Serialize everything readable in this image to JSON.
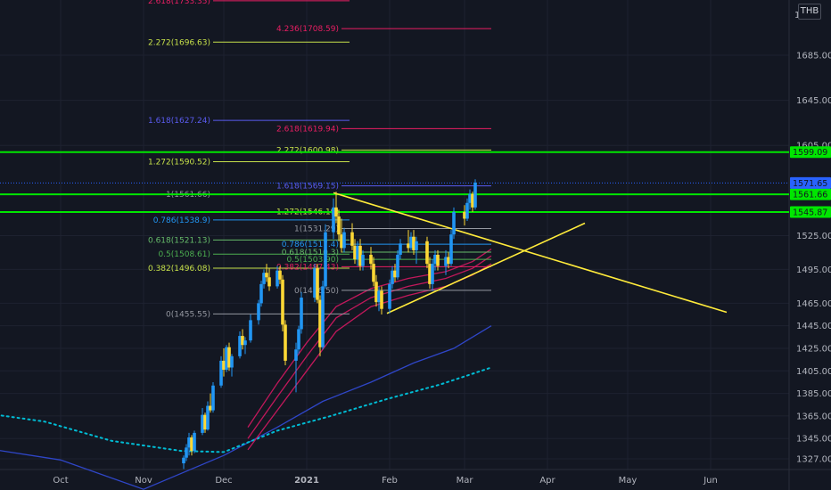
{
  "currency": "THB",
  "price_axis_marker": "1",
  "chart_data": {
    "type": "candlestick",
    "x_ticks": [
      "Oct",
      "Nov",
      "Dec",
      "2021",
      "Feb",
      "Mar",
      "Apr",
      "May",
      "Jun"
    ],
    "y_ticks": [
      "1685.00",
      "1645.00",
      "1605.00",
      "1525.00",
      "1495.00",
      "1465.00",
      "1445.00",
      "1425.00",
      "1405.00",
      "1385.00",
      "1365.00",
      "1345.00",
      "1327.00"
    ],
    "ylim": [
      1320,
      1745
    ],
    "horizontal_levels": [
      {
        "label": "1599.09",
        "value": 1599.09,
        "color": "#00e600"
      },
      {
        "label": "1561.66",
        "value": 1561.66,
        "color": "#00e600"
      },
      {
        "label": "1545.87",
        "value": 1545.87,
        "color": "#00e600"
      }
    ],
    "last_price": {
      "label": "1571.65",
      "value": 1571.65,
      "color": "#2962ff"
    },
    "fib_levels": [
      {
        "label": "2.618(1733.35)",
        "value": 1733.35,
        "color": "#e91e63",
        "x1": "Nov 27",
        "x2": "Jan 17"
      },
      {
        "label": "4.236(1708.59)",
        "value": 1708.59,
        "color": "#e91e63",
        "x1": "Jan 14",
        "x2": "Mar 11"
      },
      {
        "label": "2.272(1696.63)",
        "value": 1696.63,
        "color": "#c6e04a",
        "x1": "Nov 27",
        "x2": "Jan 17"
      },
      {
        "label": "1.618(1627.24)",
        "value": 1627.24,
        "color": "#5a5cf0",
        "x1": "Nov 27",
        "x2": "Jan 17"
      },
      {
        "label": "2.618(1619.94)",
        "value": 1619.94,
        "color": "#e91e63",
        "x1": "Jan 14",
        "x2": "Mar 11"
      },
      {
        "label": "2.272(1600.98)",
        "value": 1600.98,
        "color": "#c6e04a",
        "x1": "Jan 14",
        "x2": "Mar 11"
      },
      {
        "label": "1.272(1590.52)",
        "value": 1590.52,
        "color": "#c6e04a",
        "x1": "Nov 27",
        "x2": "Jan 17"
      },
      {
        "label": "1.618(1569.15)",
        "value": 1569.15,
        "color": "#5a5cf0",
        "x1": "Jan 14",
        "x2": "Mar 11"
      },
      {
        "label": "1(1561.66)",
        "value": 1561.66,
        "color": "#9598a1",
        "x1": "Nov 27",
        "x2": "Jan 17"
      },
      {
        "label": "1.272(1546.19)",
        "value": 1546.19,
        "color": "#c6e04a",
        "x1": "Jan 14",
        "x2": "Mar 11"
      },
      {
        "label": "0.786(1538.9)",
        "value": 1538.9,
        "color": "#2196f3",
        "x1": "Nov 27",
        "x2": "Jan 17"
      },
      {
        "label": "1(1531.29)",
        "value": 1531.29,
        "color": "#9598a1",
        "x1": "Jan 14",
        "x2": "Mar 11"
      },
      {
        "label": "0.618(1521.13)",
        "value": 1521.13,
        "color": "#66bb6a",
        "x1": "Nov 27",
        "x2": "Jan 17"
      },
      {
        "label": "0.786(1517.4)",
        "value": 1517.4,
        "color": "#2196f3",
        "x1": "Jan 14",
        "x2": "Mar 11"
      },
      {
        "label": "0.5(1508.61)",
        "value": 1508.61,
        "color": "#4caf50",
        "x1": "Nov 27",
        "x2": "Jan 17"
      },
      {
        "label": "0.618(1510.3)",
        "value": 1510.3,
        "color": "#66bb6a",
        "x1": "Jan 14",
        "x2": "Mar 11"
      },
      {
        "label": "0.5(1503.90)",
        "value": 1503.9,
        "color": "#4caf50",
        "x1": "Jan 14",
        "x2": "Mar 11"
      },
      {
        "label": "0.382(1496.08)",
        "value": 1496.08,
        "color": "#c6e04a",
        "x1": "Nov 27",
        "x2": "Jan 17"
      },
      {
        "label": "0.382(1497.43)",
        "value": 1497.43,
        "color": "#e91e63",
        "x1": "Jan 14",
        "x2": "Mar 11"
      },
      {
        "label": "0(1476.50)",
        "value": 1476.5,
        "color": "#9598a1",
        "x1": "Jan 14",
        "x2": "Mar 11"
      },
      {
        "label": "0(1455.55)",
        "value": 1455.55,
        "color": "#9598a1",
        "x1": "Nov 27",
        "x2": "Jan 17"
      }
    ],
    "trendlines": [
      {
        "name": "descending",
        "color": "#ffeb3b",
        "from": [
          "Jan 11",
          1563
        ],
        "to": [
          "Jun 7",
          1457
        ]
      },
      {
        "name": "ascending",
        "color": "#ffeb3b",
        "from": [
          "Jan 31",
          1456
        ],
        "to": [
          "Apr 15",
          1536
        ]
      }
    ],
    "moving_averages": [
      {
        "color": "#2f46c8",
        "style": "solid",
        "points": [
          [
            "Sep 1",
            1337
          ],
          [
            "Oct 1",
            1326
          ],
          [
            "Nov 1",
            1300
          ],
          [
            "Dec 1",
            1330
          ],
          [
            "Dec 21",
            1355
          ],
          [
            "Jan 7",
            1378
          ],
          [
            "Jan 25",
            1395
          ],
          [
            "Feb 10",
            1412
          ],
          [
            "Feb 25",
            1425
          ],
          [
            "Mar 11",
            1445
          ]
        ]
      },
      {
        "color": "#00bcd4",
        "style": "dotted",
        "points": [
          [
            "Sep 1",
            1368
          ],
          [
            "Sep 25",
            1360
          ],
          [
            "Oct 20",
            1343
          ],
          [
            "Nov 15",
            1334
          ],
          [
            "Dec 1",
            1333
          ],
          [
            "Dec 21",
            1352
          ],
          [
            "Jan 10",
            1365
          ],
          [
            "Jan 31",
            1380
          ],
          [
            "Feb 20",
            1393
          ],
          [
            "Mar 11",
            1408
          ]
        ]
      },
      {
        "color": "#c2185b",
        "style": "solid",
        "points": [
          [
            "Dec 10",
            1335
          ],
          [
            "Dec 21",
            1370
          ],
          [
            "Jan 1",
            1405
          ],
          [
            "Jan 12",
            1440
          ],
          [
            "Jan 25",
            1462
          ],
          [
            "Feb 8",
            1472
          ],
          [
            "Feb 22",
            1480
          ],
          [
            "Mar 4",
            1490
          ],
          [
            "Mar 11",
            1500
          ]
        ]
      },
      {
        "color": "#c2185b",
        "style": "solid",
        "points": [
          [
            "Dec 10",
            1345
          ],
          [
            "Dec 21",
            1382
          ],
          [
            "Jan 1",
            1418
          ],
          [
            "Jan 12",
            1452
          ],
          [
            "Jan 25",
            1470
          ],
          [
            "Feb 8",
            1480
          ],
          [
            "Feb 22",
            1487
          ],
          [
            "Mar 4",
            1496
          ],
          [
            "Mar 11",
            1507
          ]
        ]
      },
      {
        "color": "#c2185b",
        "style": "solid",
        "points": [
          [
            "Dec 10",
            1355
          ],
          [
            "Dec 21",
            1394
          ],
          [
            "Jan 1",
            1430
          ],
          [
            "Jan 12",
            1462
          ],
          [
            "Jan 25",
            1478
          ],
          [
            "Feb 8",
            1487
          ],
          [
            "Feb 22",
            1493
          ],
          [
            "Mar 4",
            1502
          ],
          [
            "Mar 11",
            1513
          ]
        ]
      }
    ],
    "candles": [
      [
        "Nov 16",
        1323,
        1330,
        1318,
        1328
      ],
      [
        "Nov 17",
        1328,
        1340,
        1325,
        1337
      ],
      [
        "Nov 18",
        1337,
        1350,
        1330,
        1346
      ],
      [
        "Nov 19",
        1346,
        1348,
        1330,
        1334
      ],
      [
        "Nov 20",
        1334,
        1352,
        1332,
        1350
      ],
      [
        "Nov 23",
        1350,
        1372,
        1348,
        1366
      ],
      [
        "Nov 24",
        1366,
        1368,
        1350,
        1353
      ],
      [
        "Nov 25",
        1353,
        1378,
        1352,
        1374
      ],
      [
        "Nov 26",
        1374,
        1385,
        1368,
        1370
      ],
      [
        "Nov 27",
        1370,
        1395,
        1368,
        1392
      ],
      [
        "Nov 30",
        1392,
        1418,
        1390,
        1414
      ],
      [
        "Dec 1",
        1414,
        1425,
        1400,
        1406
      ],
      [
        "Dec 2",
        1406,
        1428,
        1404,
        1426
      ],
      [
        "Dec 3",
        1426,
        1430,
        1405,
        1408
      ],
      [
        "Dec 4",
        1408,
        1420,
        1400,
        1418
      ],
      [
        "Dec 7",
        1418,
        1440,
        1416,
        1436
      ],
      [
        "Dec 8",
        1436,
        1442,
        1424,
        1428
      ],
      [
        "Dec 9",
        1428,
        1435,
        1420,
        1432
      ],
      [
        "Dec 11",
        1432,
        1455,
        1430,
        1450
      ],
      [
        "Dec 14",
        1450,
        1468,
        1446,
        1465
      ],
      [
        "Dec 15",
        1465,
        1485,
        1462,
        1482
      ],
      [
        "Dec 16",
        1482,
        1495,
        1478,
        1492
      ],
      [
        "Dec 17",
        1492,
        1500,
        1484,
        1488
      ],
      [
        "Dec 18",
        1488,
        1496,
        1476,
        1480
      ],
      [
        "Dec 21",
        1480,
        1498,
        1478,
        1494
      ],
      [
        "Dec 22",
        1494,
        1498,
        1482,
        1486
      ],
      [
        "Dec 23",
        1486,
        1490,
        1440,
        1446
      ],
      [
        "Dec 24",
        1446,
        1450,
        1410,
        1414
      ],
      [
        "Dec 28",
        1414,
        1430,
        1386,
        1424
      ],
      [
        "Dec 29",
        1424,
        1445,
        1420,
        1442
      ],
      [
        "Dec 30",
        1442,
        1475,
        1438,
        1470
      ],
      [
        "Jan 4",
        1470,
        1500,
        1466,
        1496
      ],
      [
        "Jan 5",
        1496,
        1500,
        1465,
        1468
      ],
      [
        "Jan 6",
        1468,
        1472,
        1418,
        1426
      ],
      [
        "Jan 7",
        1426,
        1485,
        1424,
        1480
      ],
      [
        "Jan 8",
        1480,
        1535,
        1478,
        1528
      ],
      [
        "Jan 11",
        1528,
        1558,
        1522,
        1550
      ],
      [
        "Jan 12",
        1550,
        1564,
        1536,
        1542
      ],
      [
        "Jan 13",
        1542,
        1548,
        1520,
        1526
      ],
      [
        "Jan 14",
        1526,
        1540,
        1510,
        1514
      ],
      [
        "Jan 15",
        1514,
        1532,
        1510,
        1528
      ],
      [
        "Jan 18",
        1528,
        1536,
        1512,
        1516
      ],
      [
        "Jan 19",
        1516,
        1522,
        1500,
        1504
      ],
      [
        "Jan 20",
        1504,
        1520,
        1498,
        1516
      ],
      [
        "Jan 21",
        1516,
        1522,
        1494,
        1498
      ],
      [
        "Jan 22",
        1498,
        1512,
        1494,
        1508
      ],
      [
        "Jan 25",
        1508,
        1515,
        1495,
        1500
      ],
      [
        "Jan 26",
        1500,
        1506,
        1480,
        1484
      ],
      [
        "Jan 27",
        1484,
        1490,
        1462,
        1466
      ],
      [
        "Jan 28",
        1466,
        1480,
        1458,
        1476
      ],
      [
        "Jan 29",
        1476,
        1480,
        1455,
        1460
      ],
      [
        "Feb 1",
        1460,
        1486,
        1456,
        1482
      ],
      [
        "Feb 2",
        1482,
        1498,
        1478,
        1494
      ],
      [
        "Feb 3",
        1494,
        1500,
        1484,
        1488
      ],
      [
        "Feb 4",
        1488,
        1512,
        1486,
        1508
      ],
      [
        "Feb 5",
        1508,
        1522,
        1504,
        1518
      ],
      [
        "Feb 8",
        1518,
        1530,
        1510,
        1514
      ],
      [
        "Feb 9",
        1514,
        1528,
        1512,
        1524
      ],
      [
        "Feb 10",
        1524,
        1530,
        1508,
        1512
      ],
      [
        "Feb 11",
        1512,
        1524,
        1500,
        1520
      ],
      [
        "Feb 15",
        1520,
        1524,
        1496,
        1500
      ],
      [
        "Feb 16",
        1500,
        1506,
        1478,
        1482
      ],
      [
        "Feb 17",
        1482,
        1504,
        1476,
        1500
      ],
      [
        "Feb 18",
        1500,
        1512,
        1494,
        1508
      ],
      [
        "Feb 19",
        1508,
        1512,
        1494,
        1498
      ],
      [
        "Feb 22",
        1498,
        1512,
        1490,
        1506
      ],
      [
        "Feb 23",
        1506,
        1510,
        1496,
        1500
      ],
      [
        "Feb 24",
        1500,
        1530,
        1498,
        1526
      ],
      [
        "Feb 25",
        1526,
        1550,
        1522,
        1546
      ],
      [
        "Mar 1",
        1546,
        1552,
        1534,
        1540
      ],
      [
        "Mar 2",
        1540,
        1558,
        1538,
        1554
      ],
      [
        "Mar 3",
        1554,
        1566,
        1548,
        1562
      ],
      [
        "Mar 4",
        1562,
        1564,
        1546,
        1550
      ],
      [
        "Mar 5",
        1550,
        1575,
        1548,
        1572
      ]
    ]
  }
}
